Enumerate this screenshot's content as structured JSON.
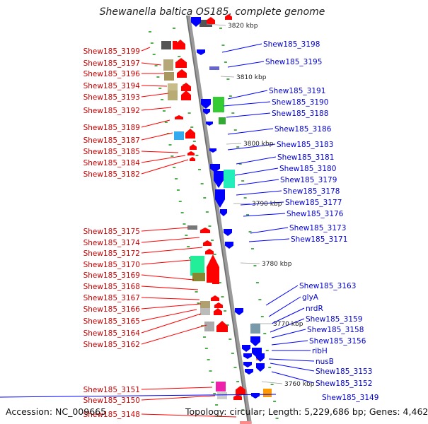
{
  "title": "Shewanella baltica OS185, complete genome",
  "footer": {
    "accession": "Accession: NC_009665",
    "topology": "Topology: circular; Length: 5,229,686 bp; Genes: 4,462"
  },
  "colors": {
    "forward_label": "#cc0000",
    "reverse_label": "#0000cc",
    "forward_gene": "#ff0000",
    "reverse_gene": "#0000ff",
    "backbone": "#8c8c8c",
    "tick": "#229922"
  },
  "position_labels": [
    "3820 kbp",
    "3810 kbp",
    "3800 kbp",
    "3790 kbp",
    "3780 kbp",
    "3770 kbp",
    "3760 kbp"
  ],
  "forward_genes": [
    "Shew185_3199",
    "Shew185_3197",
    "Shew185_3196",
    "Shew185_3194",
    "Shew185_3193",
    "Shew185_3192",
    "Shew185_3189",
    "Shew185_3187",
    "Shew185_3185",
    "Shew185_3184",
    "Shew185_3182",
    "Shew185_3175",
    "Shew185_3174",
    "Shew185_3172",
    "Shew185_3170",
    "Shew185_3169",
    "Shew185_3168",
    "Shew185_3167",
    "Shew185_3166",
    "Shew185_3165",
    "Shew185_3164",
    "Shew185_3162",
    "Shew185_3151",
    "Shew185_3150",
    "Shew185_3148"
  ],
  "reverse_genes": [
    "Shew185_3198",
    "Shew185_3195",
    "Shew185_3191",
    "Shew185_3190",
    "Shew185_3188",
    "Shew185_3186",
    "Shew185_3183",
    "Shew185_3181",
    "Shew185_3180",
    "Shew185_3179",
    "Shew185_3178",
    "Shew185_3177",
    "Shew185_3176",
    "Shew185_3173",
    "Shew185_3171",
    "Shew185_3163",
    "glyA",
    "nrdR",
    "Shew185_3159",
    "Shew185_3158",
    "Shew185_3156",
    "ribH",
    "nusB",
    "Shew185_3153",
    "Shew185_3152",
    "Shew185_3149"
  ]
}
